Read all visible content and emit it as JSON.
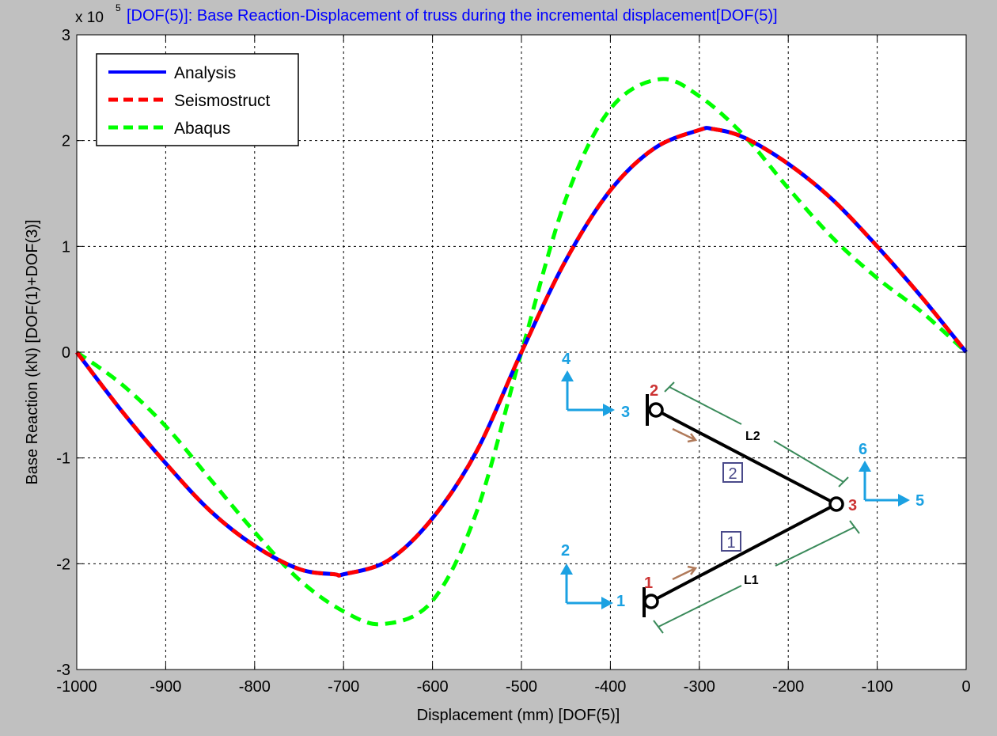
{
  "chart_data": {
    "type": "line",
    "title": "[DOF(5)]: Base Reaction-Displacement of truss during the incremental displacement[DOF(5)]",
    "xlabel": "Displacement (mm) [DOF(5)]",
    "ylabel": "Base Reaction (kN) [DOF(1)+DOF(3)]",
    "y_exponent_label": "x 10",
    "y_exponent": "5",
    "xlim": [
      -1000,
      0
    ],
    "ylim": [
      -3,
      3
    ],
    "y_scale_factor": 100000,
    "x_ticks": [
      -1000,
      -900,
      -800,
      -700,
      -600,
      -500,
      -400,
      -300,
      -200,
      -100,
      0
    ],
    "y_ticks": [
      -3,
      -2,
      -1,
      0,
      1,
      2,
      3
    ],
    "grid": true,
    "legend_position": "top-left",
    "series": [
      {
        "name": "Analysis",
        "color": "#0000ff",
        "style": "solid",
        "x": [
          -1000,
          -950,
          -900,
          -850,
          -800,
          -750,
          -710,
          -700,
          -650,
          -600,
          -550,
          -500,
          -450,
          -400,
          -350,
          -300,
          -285,
          -250,
          -200,
          -150,
          -100,
          -50,
          0
        ],
        "y": [
          0,
          -0.55,
          -1.05,
          -1.5,
          -1.83,
          -2.05,
          -2.1,
          -2.1,
          -1.97,
          -1.57,
          -0.93,
          0,
          0.87,
          1.53,
          1.93,
          2.1,
          2.11,
          2.03,
          1.78,
          1.44,
          1.0,
          0.52,
          0
        ]
      },
      {
        "name": "Seismostruct",
        "color": "#ff0000",
        "style": "dashed",
        "x": [
          -1000,
          -950,
          -900,
          -850,
          -800,
          -750,
          -710,
          -700,
          -650,
          -600,
          -550,
          -500,
          -450,
          -400,
          -350,
          -300,
          -285,
          -250,
          -200,
          -150,
          -100,
          -50,
          0
        ],
        "y": [
          0,
          -0.55,
          -1.05,
          -1.5,
          -1.83,
          -2.05,
          -2.1,
          -2.1,
          -1.97,
          -1.57,
          -0.93,
          0,
          0.87,
          1.53,
          1.93,
          2.1,
          2.11,
          2.03,
          1.78,
          1.44,
          1.0,
          0.52,
          0
        ]
      },
      {
        "name": "Abaqus",
        "color": "#00ff00",
        "style": "dashed",
        "x": [
          -1000,
          -950,
          -900,
          -850,
          -800,
          -750,
          -700,
          -655,
          -600,
          -550,
          -500,
          -450,
          -400,
          -345,
          -300,
          -250,
          -200,
          -150,
          -100,
          -50,
          0
        ],
        "y": [
          0,
          -0.3,
          -0.7,
          -1.2,
          -1.7,
          -2.15,
          -2.45,
          -2.57,
          -2.35,
          -1.5,
          0,
          1.45,
          2.3,
          2.58,
          2.42,
          2.05,
          1.55,
          1.08,
          0.7,
          0.38,
          0
        ]
      }
    ],
    "inset_diagram": {
      "nodes": [
        {
          "label": "1",
          "color": "#cc3333"
        },
        {
          "label": "2",
          "color": "#cc3333"
        },
        {
          "label": "3",
          "color": "#cc3333"
        }
      ],
      "members": [
        {
          "label": "1",
          "length_label": "L1"
        },
        {
          "label": "2",
          "length_label": "L2"
        }
      ],
      "dofs": [
        "1",
        "2",
        "3",
        "4",
        "5",
        "6"
      ],
      "dof_color": "#1ba1e2",
      "member_color": "#000000",
      "dimension_color": "#3a8a5a",
      "direction_arrow_color": "#b07a5a",
      "member_box_color": "#4a4a8a"
    }
  }
}
